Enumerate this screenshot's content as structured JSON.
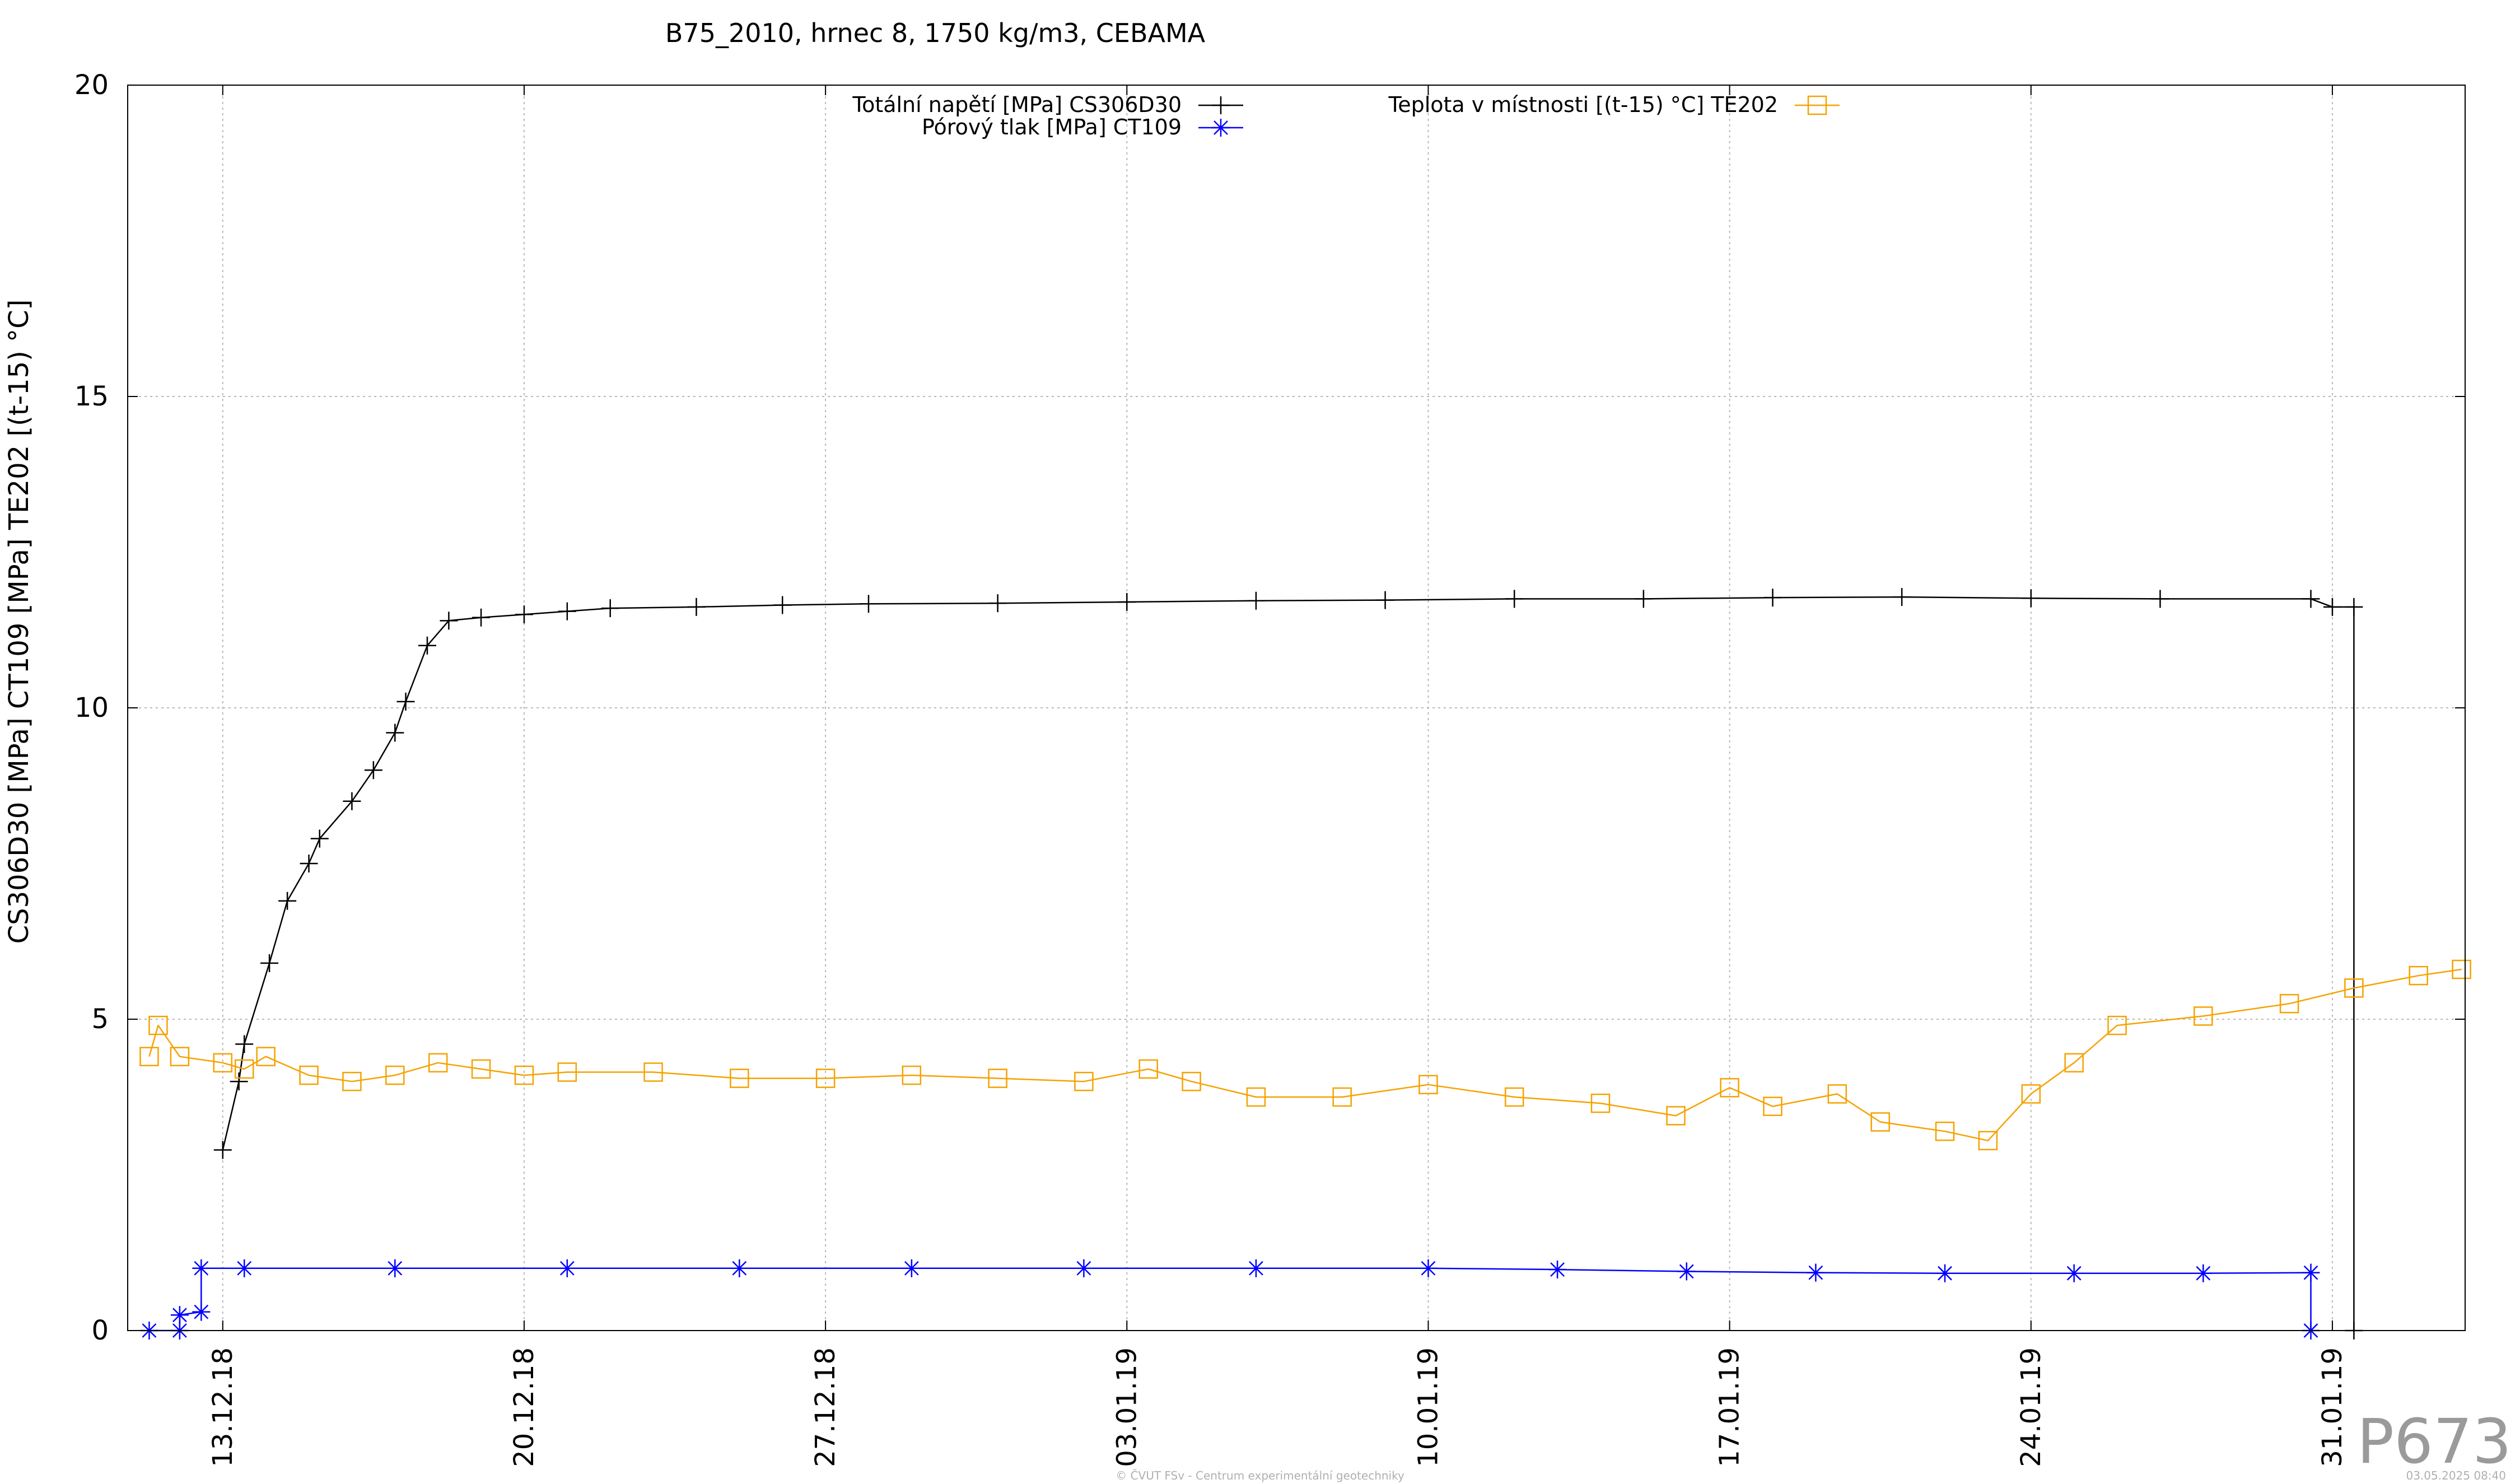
{
  "chart_data": {
    "type": "line",
    "title": "B75_2010, hrnec 8, 1750 kg/m3, CEBAMA",
    "ylabel": "CS306D30 [MPa] CT109 [MPa] TE202 [(t-15) °C]",
    "xlabel": "",
    "ylim": [
      0,
      20
    ],
    "xlim": [
      "2018-12-10 19:00",
      "2019-02-03 02:00"
    ],
    "y_ticks": [
      "0",
      "5",
      "10",
      "15",
      "20"
    ],
    "x_ticks": [
      {
        "label": "13.12.18",
        "date": "2018-12-13 00:00"
      },
      {
        "label": "20.12.18",
        "date": "2018-12-20 00:00"
      },
      {
        "label": "27.12.18",
        "date": "2018-12-27 00:00"
      },
      {
        "label": "03.01.19",
        "date": "2019-01-03 00:00"
      },
      {
        "label": "10.01.19",
        "date": "2019-01-10 00:00"
      },
      {
        "label": "17.01.19",
        "date": "2019-01-17 00:00"
      },
      {
        "label": "24.01.19",
        "date": "2019-01-24 00:00"
      },
      {
        "label": "31.01.19",
        "date": "2019-01-31 00:00"
      }
    ],
    "grid": true,
    "legend_position": "top-center",
    "series": [
      {
        "name": "Totální napětí [MPa] CS306D30",
        "color": "#000000",
        "marker": "plus",
        "points": [
          [
            "2018-12-13 00:00",
            2.9
          ],
          [
            "2018-12-13 09:00",
            4.0
          ],
          [
            "2018-12-13 12:00",
            4.6
          ],
          [
            "2018-12-14 02:00",
            5.9
          ],
          [
            "2018-12-14 12:00",
            6.9
          ],
          [
            "2018-12-15 00:00",
            7.5
          ],
          [
            "2018-12-15 06:00",
            7.9
          ],
          [
            "2018-12-16 00:00",
            8.5
          ],
          [
            "2018-12-16 12:00",
            9.0
          ],
          [
            "2018-12-17 00:00",
            9.6
          ],
          [
            "2018-12-17 06:00",
            10.1
          ],
          [
            "2018-12-17 18:00",
            11.0
          ],
          [
            "2018-12-18 06:00",
            11.4
          ],
          [
            "2018-12-19 00:00",
            11.45
          ],
          [
            "2018-12-20 00:00",
            11.5
          ],
          [
            "2018-12-21 00:00",
            11.55
          ],
          [
            "2018-12-22 00:00",
            11.6
          ],
          [
            "2018-12-24 00:00",
            11.62
          ],
          [
            "2018-12-26 00:00",
            11.65
          ],
          [
            "2018-12-28 00:00",
            11.67
          ],
          [
            "2018-12-31 00:00",
            11.68
          ],
          [
            "2019-01-03 00:00",
            11.7
          ],
          [
            "2019-01-06 00:00",
            11.72
          ],
          [
            "2019-01-09 00:00",
            11.73
          ],
          [
            "2019-01-12 00:00",
            11.75
          ],
          [
            "2019-01-15 00:00",
            11.75
          ],
          [
            "2019-01-18 00:00",
            11.77
          ],
          [
            "2019-01-21 00:00",
            11.78
          ],
          [
            "2019-01-24 00:00",
            11.76
          ],
          [
            "2019-01-27 00:00",
            11.75
          ],
          [
            "2019-01-30 12:00",
            11.75
          ],
          [
            "2019-01-31 00:00",
            11.62
          ],
          [
            "2019-01-31 12:00",
            11.62
          ],
          [
            "2019-01-31 12:00",
            0.0
          ]
        ]
      },
      {
        "name": "Pórový tlak [MPa] CT109",
        "color": "#0000ff",
        "marker": "star",
        "points": [
          [
            "2018-12-11 07:00",
            0.0
          ],
          [
            "2018-12-12 00:00",
            0.0
          ],
          [
            "2018-12-12 00:00",
            0.25
          ],
          [
            "2018-12-12 12:00",
            0.3
          ],
          [
            "2018-12-12 12:00",
            1.0
          ],
          [
            "2018-12-13 12:00",
            1.0
          ],
          [
            "2018-12-17 00:00",
            1.0
          ],
          [
            "2018-12-21 00:00",
            1.0
          ],
          [
            "2018-12-25 00:00",
            1.0
          ],
          [
            "2018-12-29 00:00",
            1.0
          ],
          [
            "2019-01-02 00:00",
            1.0
          ],
          [
            "2019-01-06 00:00",
            1.0
          ],
          [
            "2019-01-10 00:00",
            1.0
          ],
          [
            "2019-01-13 00:00",
            0.98
          ],
          [
            "2019-01-16 00:00",
            0.95
          ],
          [
            "2019-01-19 00:00",
            0.93
          ],
          [
            "2019-01-22 00:00",
            0.92
          ],
          [
            "2019-01-25 00:00",
            0.92
          ],
          [
            "2019-01-28 00:00",
            0.92
          ],
          [
            "2019-01-30 12:00",
            0.93
          ],
          [
            "2019-01-30 12:00",
            0.0
          ]
        ]
      },
      {
        "name": "Teplota v místnosti [(t-15) °C] TE202",
        "color": "#f5a200",
        "marker": "square",
        "points": [
          [
            "2018-12-11 07:00",
            4.4
          ],
          [
            "2018-12-11 12:00",
            4.9
          ],
          [
            "2018-12-12 00:00",
            4.4
          ],
          [
            "2018-12-13 00:00",
            4.3
          ],
          [
            "2018-12-13 12:00",
            4.2
          ],
          [
            "2018-12-14 00:00",
            4.4
          ],
          [
            "2018-12-15 00:00",
            4.1
          ],
          [
            "2018-12-16 00:00",
            4.0
          ],
          [
            "2018-12-17 00:00",
            4.1
          ],
          [
            "2018-12-18 00:00",
            4.3
          ],
          [
            "2018-12-19 00:00",
            4.2
          ],
          [
            "2018-12-20 00:00",
            4.1
          ],
          [
            "2018-12-21 00:00",
            4.15
          ],
          [
            "2018-12-23 00:00",
            4.15
          ],
          [
            "2018-12-25 00:00",
            4.05
          ],
          [
            "2018-12-27 00:00",
            4.05
          ],
          [
            "2018-12-29 00:00",
            4.1
          ],
          [
            "2018-12-31 00:00",
            4.05
          ],
          [
            "2019-01-02 00:00",
            4.0
          ],
          [
            "2019-01-03 12:00",
            4.2
          ],
          [
            "2019-01-04 12:00",
            4.0
          ],
          [
            "2019-01-06 00:00",
            3.75
          ],
          [
            "2019-01-08 00:00",
            3.75
          ],
          [
            "2019-01-10 00:00",
            3.95
          ],
          [
            "2019-01-12 00:00",
            3.75
          ],
          [
            "2019-01-14 00:00",
            3.65
          ],
          [
            "2019-01-15 18:00",
            3.45
          ],
          [
            "2019-01-17 00:00",
            3.9
          ],
          [
            "2019-01-18 00:00",
            3.6
          ],
          [
            "2019-01-19 12:00",
            3.8
          ],
          [
            "2019-01-20 12:00",
            3.35
          ],
          [
            "2019-01-22 00:00",
            3.2
          ],
          [
            "2019-01-23 00:00",
            3.05
          ],
          [
            "2019-01-24 00:00",
            3.8
          ],
          [
            "2019-01-25 00:00",
            4.3
          ],
          [
            "2019-01-26 00:00",
            4.9
          ],
          [
            "2019-01-28 00:00",
            5.05
          ],
          [
            "2019-01-30 00:00",
            5.25
          ],
          [
            "2019-01-31 12:00",
            5.5
          ],
          [
            "2019-02-02 00:00",
            5.7
          ],
          [
            "2019-02-03 00:00",
            5.8
          ]
        ]
      }
    ]
  },
  "footer": {
    "copyright": "© ČVUT FSv - Centrum experimentální geotechniky",
    "timestamp": "03.05.2025 08:40"
  },
  "watermark": "P673"
}
